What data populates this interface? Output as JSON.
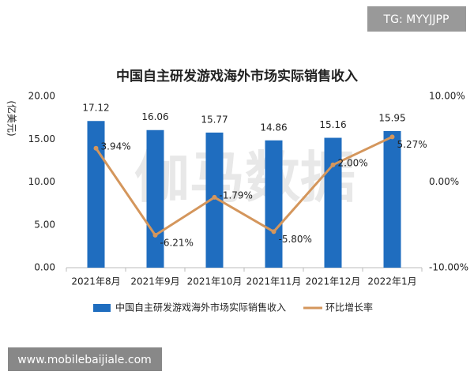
{
  "chart_data": {
    "type": "bar",
    "title": "中国自主研发游戏海外市场实际销售收入",
    "y_label": "(亿美元)",
    "watermark": "伽马数据",
    "corner_tag": "TG: MYYJJPP",
    "footer_tag": "www.mobilebaijiale.com",
    "categories": [
      "2021年8月",
      "2021年9月",
      "2021年10月",
      "2021年11月",
      "2021年12月",
      "2022年1月"
    ],
    "series": [
      {
        "name": "中国自主研发游戏海外市场实际销售收入",
        "type": "bar",
        "color": "#1f6dbf",
        "values": [
          17.12,
          16.06,
          15.77,
          14.86,
          15.16,
          15.95
        ]
      },
      {
        "name": "环比增长率",
        "type": "line",
        "axis": "y2",
        "color": "#d4965c",
        "values": [
          3.94,
          -6.21,
          -1.79,
          -5.8,
          2.0,
          5.27
        ],
        "value_labels": [
          "3.94%",
          "-6.21%",
          "-1.79%",
          "-5.80%",
          "2.00%",
          "5.27%"
        ]
      }
    ],
    "ylim": [
      0,
      20
    ],
    "yticks": [
      {
        "value": 0,
        "label": "0.00"
      },
      {
        "value": 5,
        "label": "5.00"
      },
      {
        "value": 10,
        "label": "10.00"
      },
      {
        "value": 15,
        "label": "15.00"
      },
      {
        "value": 20,
        "label": "20.00"
      }
    ],
    "y2lim": [
      -10,
      10
    ],
    "y2ticks": [
      {
        "value": -10,
        "label": "-10.00%"
      },
      {
        "value": 0,
        "label": "0.00%"
      },
      {
        "value": 10,
        "label": "10.00%"
      }
    ],
    "grid": false,
    "legend": "bottom"
  }
}
